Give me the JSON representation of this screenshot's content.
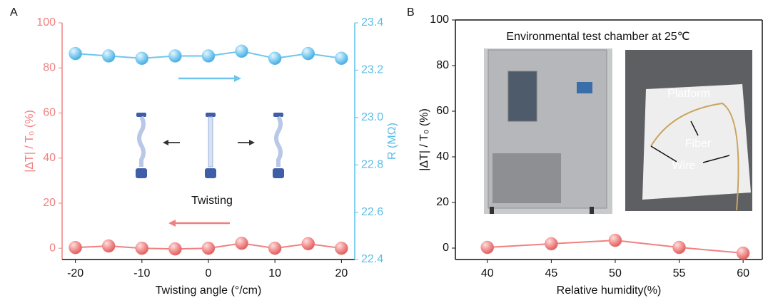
{
  "chart_data": [
    {
      "type": "line",
      "panel": "A",
      "x": [
        -20,
        -15,
        -10,
        -5,
        0,
        5,
        10,
        15,
        20
      ],
      "xlabel": "Twisting angle (°/cm)",
      "ylabel": "|ΔT| / T₀ (%)",
      "y2label": "R (MΩ)",
      "xlim": [
        -22,
        22
      ],
      "xticks": [
        -20,
        -10,
        0,
        10,
        20
      ],
      "ylim": [
        -5,
        100
      ],
      "yticks": [
        0,
        20,
        40,
        60,
        80,
        100
      ],
      "y2lim": [
        22.4,
        23.4
      ],
      "y2ticks": [
        22.4,
        22.6,
        22.8,
        {
          "value": 23,
          "label": "23.0"
        },
        23.2,
        23.4
      ],
      "y_axis_color": "#f08080",
      "y2_axis_color": "#5bbde8",
      "series": [
        {
          "color": "#f08080",
          "values": [
            0.3,
            1,
            0,
            -0.3,
            0,
            2.2,
            0,
            2,
            0
          ]
        },
        {
          "color": "#6ec6ee",
          "axis": "y2",
          "values": [
            23.27,
            23.26,
            23.25,
            23.26,
            23.26,
            23.28,
            23.25,
            23.27,
            23.25
          ]
        }
      ],
      "annotations": [
        "Twisting"
      ]
    },
    {
      "type": "line",
      "panel": "B",
      "x": [
        40,
        45,
        50,
        55,
        60
      ],
      "xlabel": "Relative humidity(%)",
      "ylabel": "|ΔT| / T₀ (%)",
      "xlim": [
        37.5,
        61.5
      ],
      "xticks": [
        40,
        45,
        50,
        55,
        60
      ],
      "ylim": [
        -5,
        100
      ],
      "yticks": [
        0,
        20,
        40,
        60,
        80,
        100
      ],
      "frame": true,
      "series": [
        {
          "color": "#f08080",
          "values": [
            0.3,
            1.9,
            3.4,
            0.3,
            -2.2
          ]
        }
      ],
      "annotations": [
        "Environmental test chamber at 25℃",
        "Platform",
        "Fiber",
        "Wire"
      ]
    }
  ]
}
